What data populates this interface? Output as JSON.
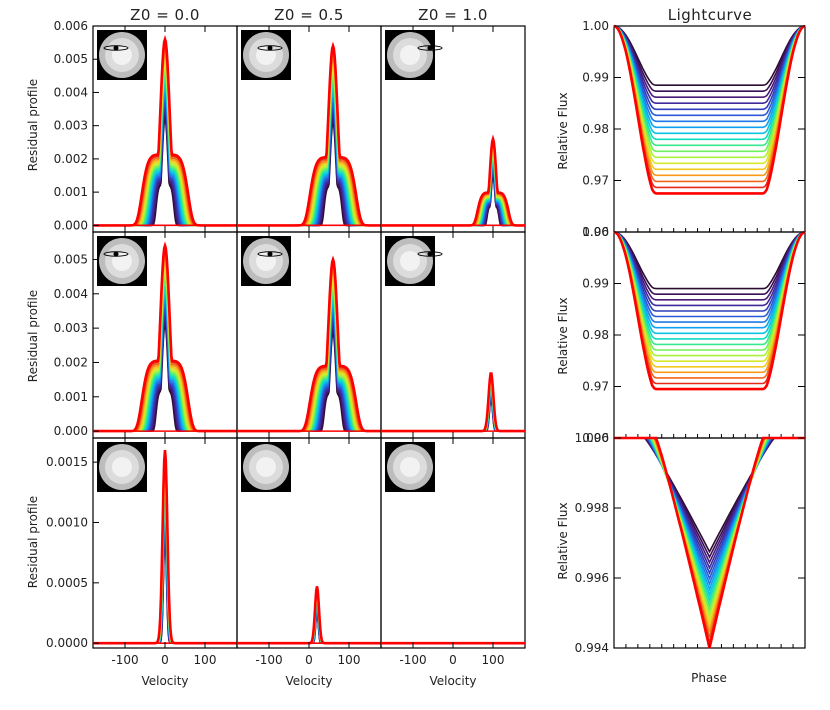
{
  "figure": {
    "column_titles": [
      "Z0 = 0.0",
      "Z0 = 0.5",
      "Z0 = 1.0"
    ],
    "lightcurve_title": "Lightcurve",
    "profile_ylabel": "Residual profile",
    "profile_xlabel": "Velocity",
    "lc_ylabel": "Relative Flux",
    "lc_xlabel": "Phase"
  },
  "colors": {
    "palette": [
      "#2b0d33",
      "#3a0f55",
      "#4a1a7a",
      "#3f2a9a",
      "#2f3fba",
      "#2a5ad6",
      "#1f7ae8",
      "#10a0f0",
      "#09c3e3",
      "#10dcc2",
      "#36e88e",
      "#6ef05a",
      "#a8f23a",
      "#d6e82a",
      "#f2c81f",
      "#f79a18",
      "#f3661a",
      "#e52a1a"
    ],
    "outer": "#ff0000"
  },
  "chart_data": [
    {
      "type": "line",
      "panel": "profile-r1-c1",
      "xlim": [
        -180,
        180
      ],
      "ylim": [
        -0.0002,
        0.006
      ],
      "xticks": [
        -100,
        0,
        100
      ],
      "yticks": [
        "0.000",
        "0.001",
        "0.002",
        "0.003",
        "0.004",
        "0.005",
        "0.006"
      ],
      "peak": 0.0056,
      "center": 0,
      "base_width": 60,
      "shoulder": true,
      "inset_spot": true
    },
    {
      "type": "line",
      "panel": "profile-r1-c2",
      "xlim": [
        -180,
        180
      ],
      "ylim": [
        -0.0002,
        0.006
      ],
      "xticks": [
        -100,
        0,
        100
      ],
      "peak": 0.0054,
      "center": 60,
      "base_width": 60,
      "shoulder": true,
      "inset_spot": true
    },
    {
      "type": "line",
      "panel": "profile-r1-c3",
      "xlim": [
        -180,
        180
      ],
      "ylim": [
        -0.0002,
        0.006
      ],
      "xticks": [
        -100,
        0,
        100
      ],
      "peak": 0.0026,
      "center": 100,
      "base_width": 40,
      "shoulder": true,
      "inset_spot": true
    },
    {
      "type": "line",
      "panel": "profile-r2-c1",
      "xlim": [
        -180,
        180
      ],
      "ylim": [
        -0.0002,
        0.0058
      ],
      "xticks": [
        -100,
        0,
        100
      ],
      "yticks": [
        "0.000",
        "0.001",
        "0.002",
        "0.003",
        "0.004",
        "0.005"
      ],
      "peak": 0.0054,
      "center": 0,
      "base_width": 60,
      "shoulder": true,
      "inset_spot": true
    },
    {
      "type": "line",
      "panel": "profile-r2-c2",
      "xlim": [
        -180,
        180
      ],
      "ylim": [
        -0.0002,
        0.0058
      ],
      "xticks": [
        -100,
        0,
        100
      ],
      "peak": 0.005,
      "center": 60,
      "base_width": 60,
      "shoulder": true,
      "inset_spot": true
    },
    {
      "type": "line",
      "panel": "profile-r2-c3",
      "xlim": [
        -180,
        180
      ],
      "ylim": [
        -0.0002,
        0.0058
      ],
      "xticks": [
        -100,
        0,
        100
      ],
      "peak": 0.0017,
      "center": 95,
      "base_width": 30,
      "shoulder": false,
      "inset_spot": true
    },
    {
      "type": "line",
      "panel": "profile-r3-c1",
      "xlim": [
        -180,
        180
      ],
      "ylim": [
        -4e-05,
        0.0017
      ],
      "xticks": [
        -100,
        0,
        100
      ],
      "yticks": [
        "0.0000",
        "0.0005",
        "0.0010",
        "0.0015"
      ],
      "peak": 0.0016,
      "center": 0,
      "base_width": 30,
      "shoulder": false,
      "inset_spot": false
    },
    {
      "type": "line",
      "panel": "profile-r3-c2",
      "xlim": [
        -180,
        180
      ],
      "ylim": [
        -4e-05,
        0.0017
      ],
      "xticks": [
        -100,
        0,
        100
      ],
      "peak": 0.00047,
      "center": 20,
      "base_width": 25,
      "shoulder": false,
      "inset_spot": false
    },
    {
      "type": "line",
      "panel": "profile-r3-c3",
      "xlim": [
        -180,
        180
      ],
      "ylim": [
        -4e-05,
        0.0017
      ],
      "xticks": [
        -100,
        0,
        100
      ],
      "peak": 0.0,
      "center": 0,
      "base_width": 25,
      "shoulder": false,
      "inset_spot": false
    },
    {
      "type": "line",
      "panel": "lightcurve-1",
      "ylim": [
        0.96,
        1.0
      ],
      "yticks": [
        "0.96",
        "0.97",
        "0.98",
        "0.99",
        "1.00"
      ],
      "depth_min": 0.9885,
      "depth_max": 0.9675,
      "shape": "u"
    },
    {
      "type": "line",
      "panel": "lightcurve-2",
      "ylim": [
        0.96,
        1.0
      ],
      "yticks": [
        "0.96",
        "0.97",
        "0.98",
        "0.99",
        "1.00"
      ],
      "depth_min": 0.989,
      "depth_max": 0.9695,
      "shape": "u"
    },
    {
      "type": "line",
      "panel": "lightcurve-3",
      "ylim": [
        0.994,
        1.0
      ],
      "yticks": [
        "0.994",
        "0.996",
        "0.998",
        "1.000"
      ],
      "depth_min": 0.99675,
      "depth_max": 0.994,
      "shape": "v"
    }
  ]
}
